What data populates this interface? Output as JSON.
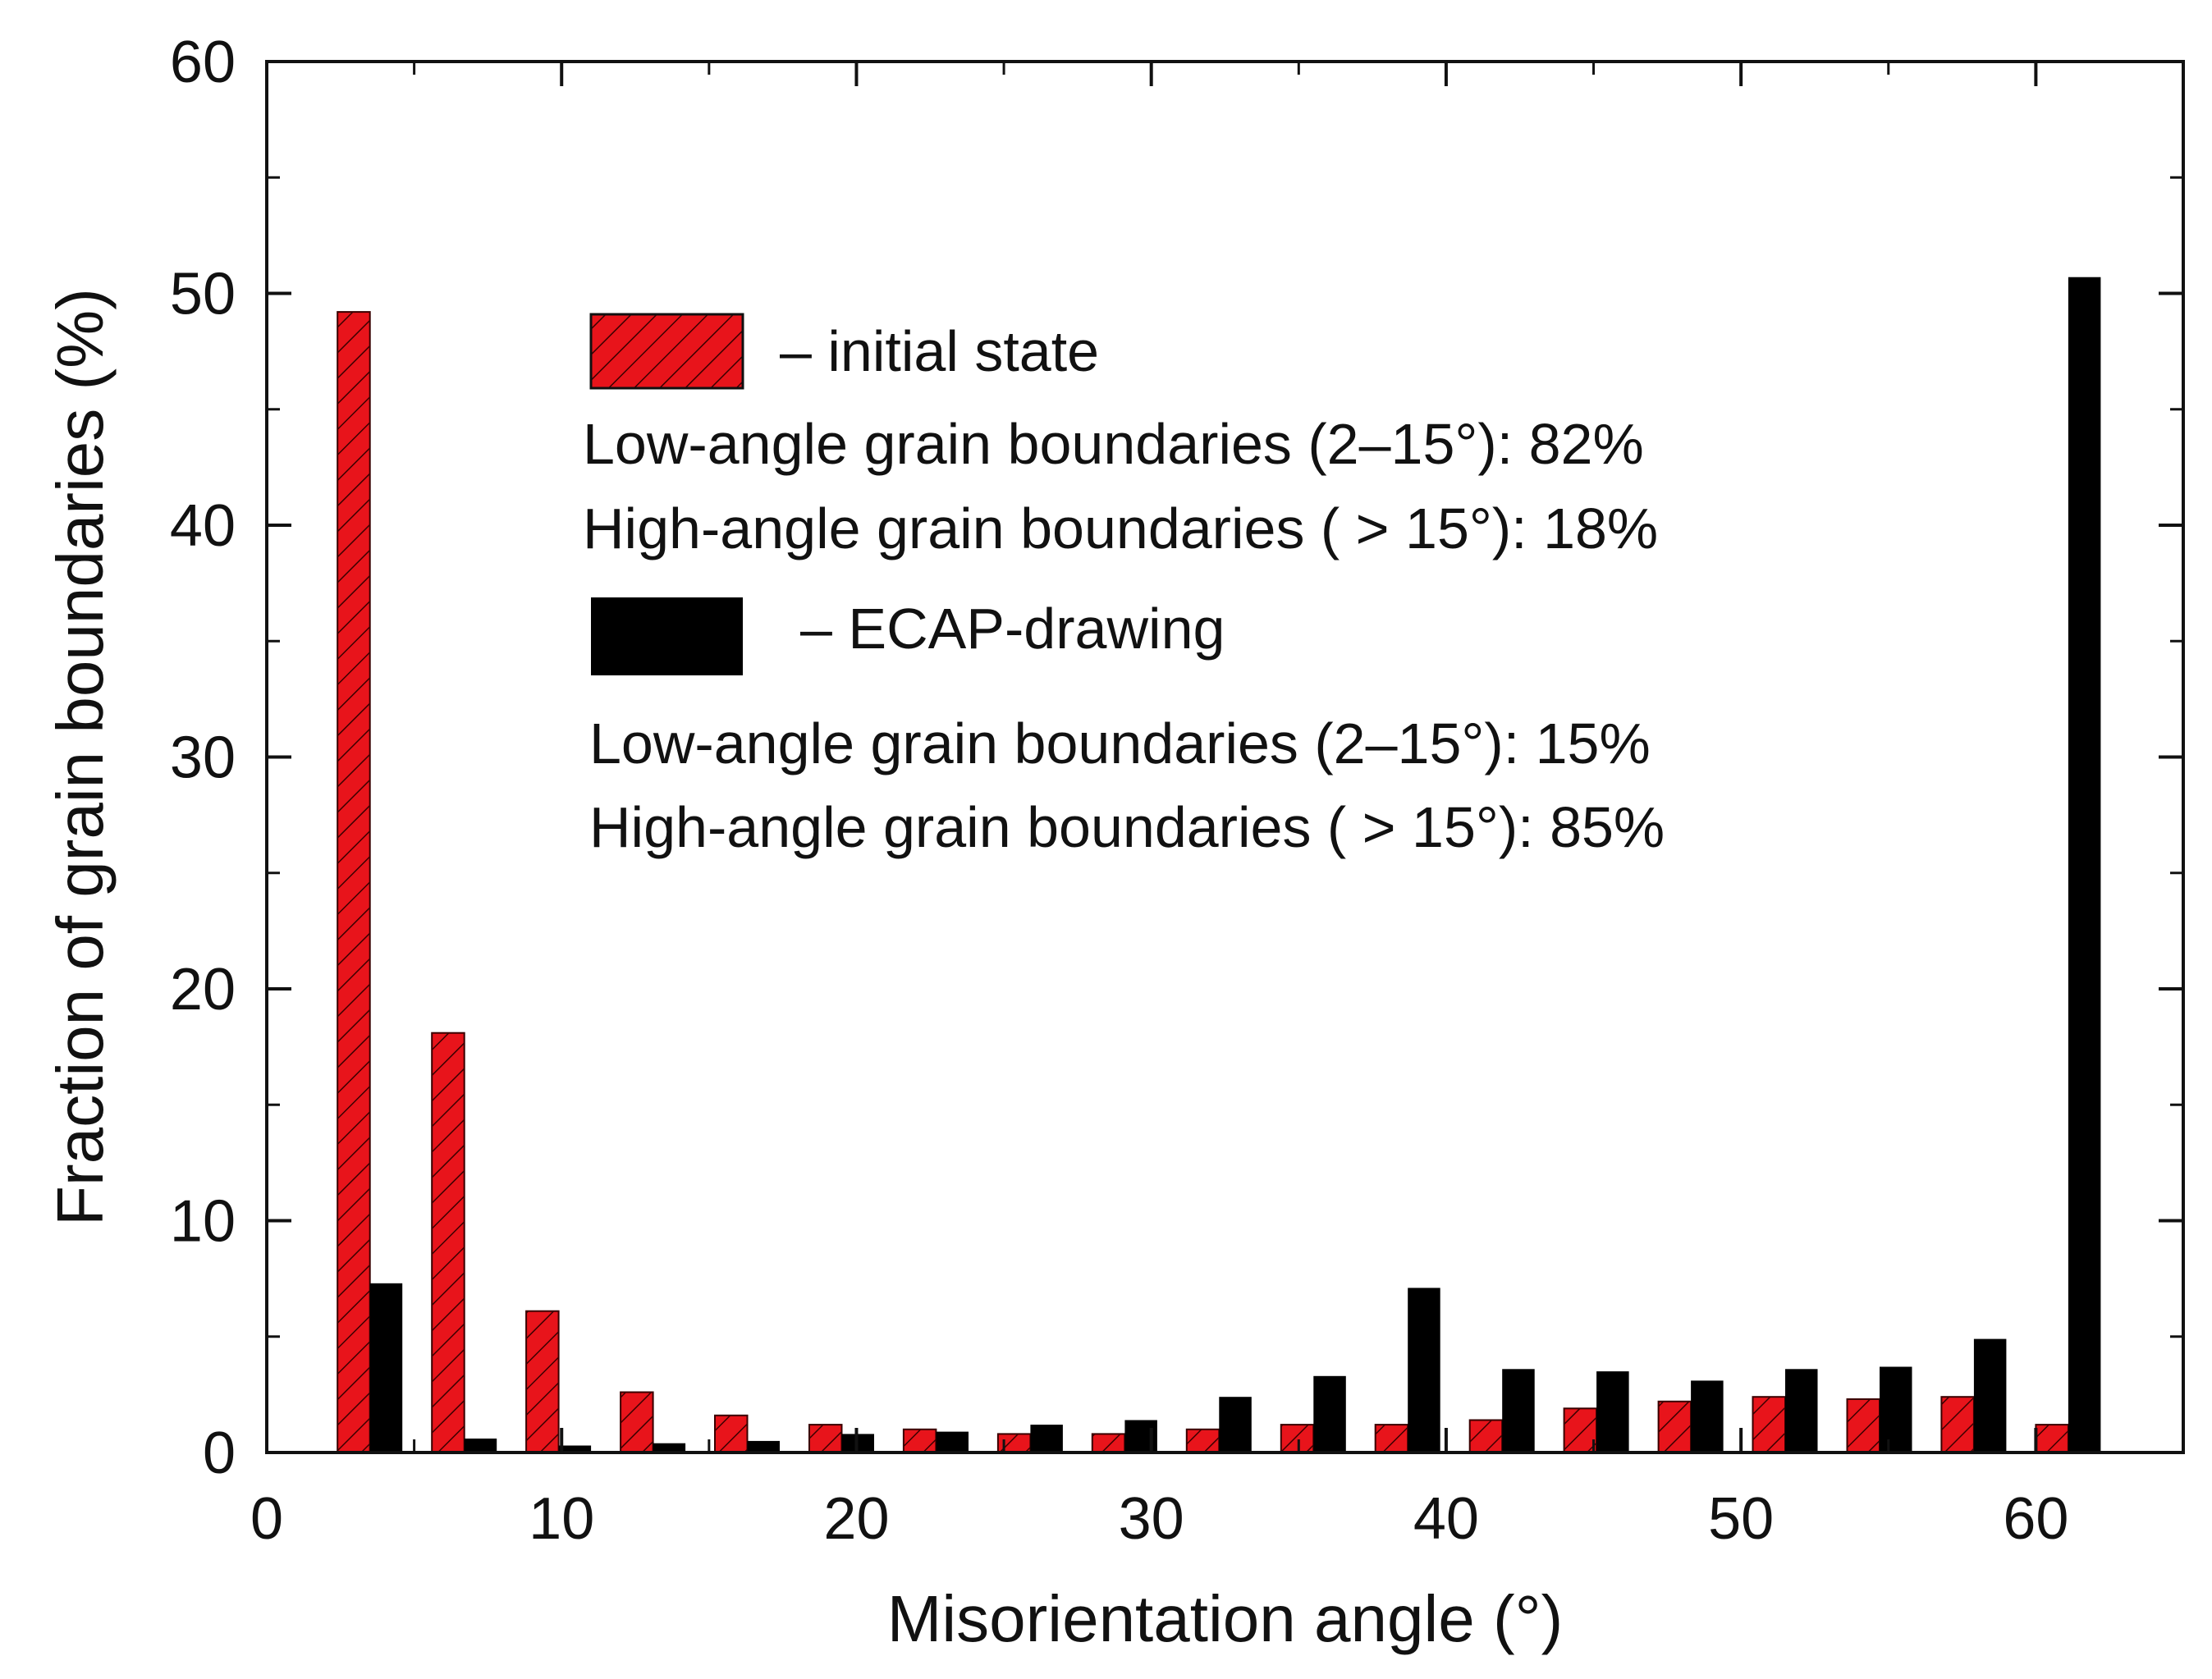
{
  "chart_data": {
    "type": "bar",
    "title": "",
    "xlabel": "Misorientation angle (°)",
    "ylabel": "Fraction of grain boundaries (%)",
    "xlim": [
      0,
      65
    ],
    "ylim": [
      0,
      60
    ],
    "xticks": [
      0,
      10,
      20,
      30,
      40,
      50,
      60
    ],
    "yticks": [
      0,
      10,
      20,
      30,
      40,
      50,
      60
    ],
    "grid": false,
    "x": [
      3.5,
      6.7,
      9.9,
      13.1,
      16.3,
      19.5,
      22.7,
      25.9,
      29.1,
      32.3,
      35.5,
      38.7,
      41.9,
      45.1,
      48.3,
      51.5,
      54.7,
      57.9,
      61.1
    ],
    "series": [
      {
        "name": "initial state",
        "color": "#e8141b",
        "pattern": "hatched",
        "values": [
          49.2,
          18.1,
          6.1,
          2.6,
          1.6,
          1.2,
          1.0,
          0.8,
          0.8,
          1.0,
          1.2,
          1.2,
          1.4,
          1.9,
          2.2,
          2.4,
          2.3,
          2.4,
          1.2
        ]
      },
      {
        "name": "ECAP-drawing",
        "color": "#000000",
        "pattern": "solid",
        "values": [
          7.3,
          0.6,
          0.3,
          0.4,
          0.5,
          0.8,
          0.9,
          1.2,
          1.4,
          2.4,
          3.3,
          7.1,
          3.6,
          3.5,
          3.1,
          3.6,
          3.7,
          4.9,
          50.7
        ]
      }
    ],
    "legend": {
      "placement": "top-center",
      "initial_label": "– initial state",
      "initial_low": "Low-angle grain boundaries (2–15°): 82%",
      "initial_high": "High-angle grain boundaries ( > 15°): 18%",
      "ecap_label": "– ECAP-drawing",
      "ecap_low": "Low-angle grain boundaries (2–15°): 15%",
      "ecap_high": "High-angle grain boundaries ( > 15°): 85%"
    }
  }
}
